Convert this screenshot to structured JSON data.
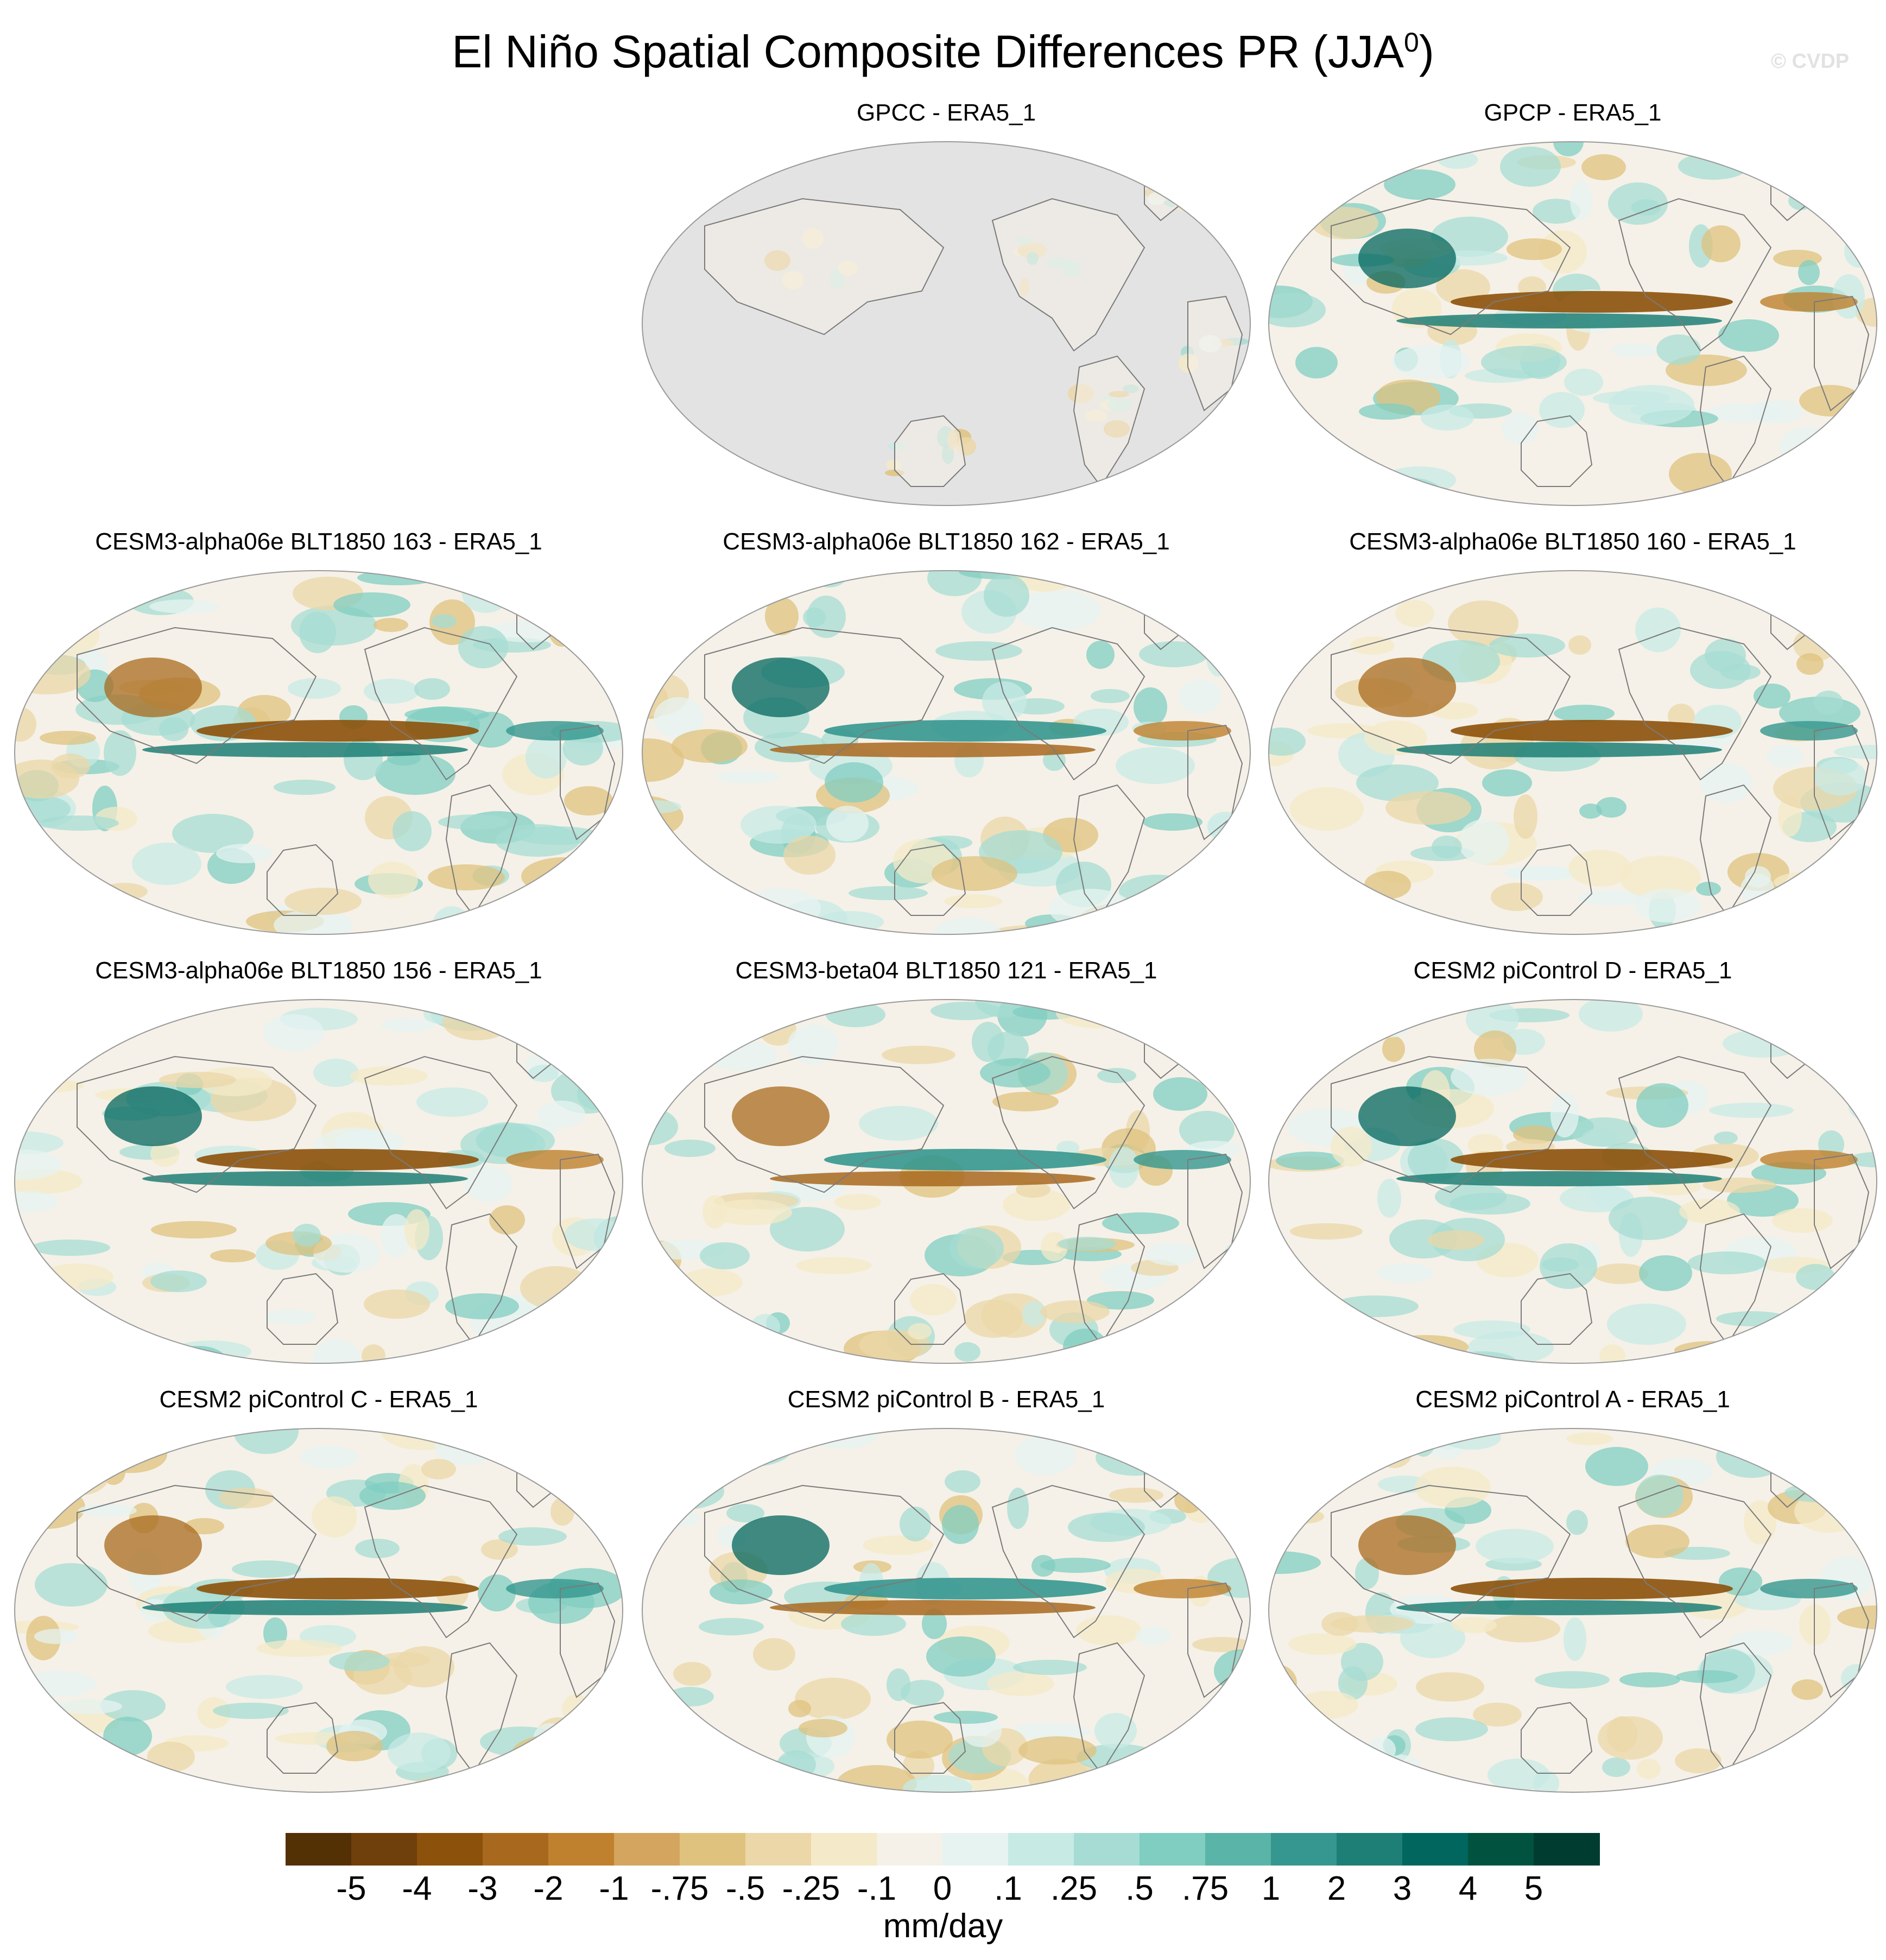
{
  "figure": {
    "title": "El Niño Spatial Composite Differences PR (JJA",
    "title_sup": "0",
    "title_close": ")",
    "credit": "© CVDP"
  },
  "panels": [
    {
      "title": "GPCC - ERA5_1",
      "kind": "land_only"
    },
    {
      "title": "GPCP - ERA5_1",
      "kind": "full"
    },
    {
      "title": "CESM3-alpha06e BLT1850 163 - ERA5_1",
      "kind": "full"
    },
    {
      "title": "CESM3-alpha06e BLT1850 162 - ERA5_1",
      "kind": "full"
    },
    {
      "title": "CESM3-alpha06e BLT1850 160 - ERA5_1",
      "kind": "full"
    },
    {
      "title": "CESM3-alpha06e BLT1850 156 - ERA5_1",
      "kind": "full"
    },
    {
      "title": "CESM3-beta04 BLT1850 121 - ERA5_1",
      "kind": "full"
    },
    {
      "title": "CESM2 piControl D - ERA5_1",
      "kind": "full"
    },
    {
      "title": "CESM2 piControl C - ERA5_1",
      "kind": "full"
    },
    {
      "title": "CESM2 piControl B - ERA5_1",
      "kind": "full"
    },
    {
      "title": "CESM2 piControl A - ERA5_1",
      "kind": "full"
    }
  ],
  "colorbar": {
    "units": "mm/day",
    "tick_labels": [
      "-5",
      "-4",
      "-3",
      "-2",
      "-1",
      "-.75",
      "-.5",
      "-.25",
      "-.1",
      "0",
      ".1",
      ".25",
      ".5",
      ".75",
      "1",
      "2",
      "3",
      "4",
      "5"
    ],
    "colors": [
      "#543005",
      "#6f3f0c",
      "#8c510a",
      "#a8691e",
      "#bf812d",
      "#d3a55e",
      "#dfc27d",
      "#ebd7a8",
      "#f4e9c8",
      "#f5f1e8",
      "#e6f3f1",
      "#c7eae5",
      "#a6dcd3",
      "#80cdc1",
      "#5ab4a7",
      "#35978f",
      "#1d7f75",
      "#01665e",
      "#01533f",
      "#003c30"
    ],
    "land_mask_color": "#e3e3e3",
    "coast_color": "#7a7a7a"
  }
}
